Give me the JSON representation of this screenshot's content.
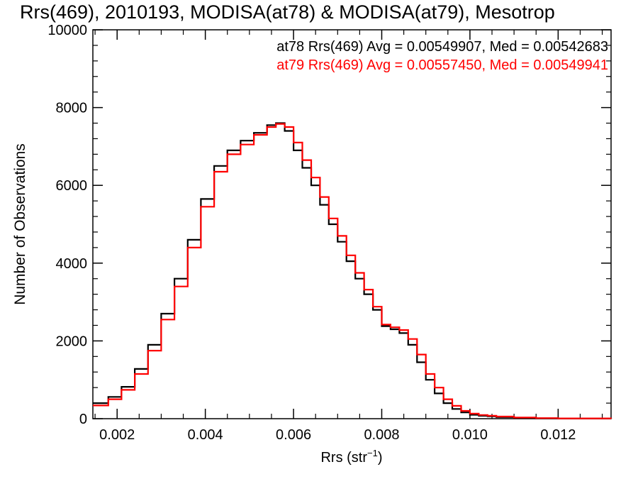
{
  "chart_data": {
    "type": "line",
    "title": "Rrs(469), 2010193, MODISA(at78) & MODISA(at79), Mesotrop",
    "xlabel_main": "Rrs (str",
    "xlabel_sup": "−1",
    "xlabel_close": ")",
    "ylabel": "Number of Observations",
    "xlim": [
      0.00145,
      0.0132
    ],
    "ylim": [
      0,
      10000
    ],
    "x_ticks": [
      0.002,
      0.004,
      0.006,
      0.008,
      0.01,
      0.012
    ],
    "x_tick_labels": [
      "0.002",
      "0.004",
      "0.006",
      "0.008",
      "0.010",
      "0.012"
    ],
    "y_ticks": [
      0,
      2000,
      4000,
      6000,
      8000,
      10000
    ],
    "y_tick_labels": [
      "0",
      "2000",
      "4000",
      "6000",
      "8000",
      "10000"
    ],
    "grid": false,
    "step": true,
    "series": [
      {
        "annotation": "at78 Rrs(469) Avg = 0.00549907, Med = 0.00542683",
        "color": "#000000",
        "x": [
          0.00145,
          0.0018,
          0.0021,
          0.0024,
          0.0027,
          0.003,
          0.0033,
          0.0036,
          0.0039,
          0.0042,
          0.0045,
          0.0048,
          0.0051,
          0.0054,
          0.0056,
          0.0058,
          0.006,
          0.0062,
          0.0064,
          0.0066,
          0.0068,
          0.007,
          0.0072,
          0.0074,
          0.0076,
          0.0078,
          0.008,
          0.0082,
          0.0084,
          0.0086,
          0.0088,
          0.009,
          0.0092,
          0.0094,
          0.0096,
          0.0098,
          0.01,
          0.0102,
          0.0104,
          0.0106,
          0.011,
          0.0115,
          0.012,
          0.0132
        ],
        "y": [
          400,
          560,
          820,
          1280,
          1900,
          2700,
          3600,
          4600,
          5650,
          6500,
          6900,
          7150,
          7350,
          7550,
          7600,
          7400,
          6900,
          6450,
          6000,
          5500,
          5000,
          4550,
          4050,
          3600,
          3200,
          2800,
          2380,
          2300,
          2200,
          1900,
          1450,
          1000,
          650,
          400,
          250,
          160,
          100,
          75,
          60,
          40,
          20,
          10,
          5,
          0
        ]
      },
      {
        "annotation": "at79 Rrs(469) Avg = 0.00557450, Med = 0.00549941",
        "color": "#ff0000",
        "x": [
          0.00145,
          0.0018,
          0.0021,
          0.0024,
          0.0027,
          0.003,
          0.0033,
          0.0036,
          0.0039,
          0.0042,
          0.0045,
          0.0048,
          0.0051,
          0.0054,
          0.0056,
          0.0058,
          0.006,
          0.0062,
          0.0064,
          0.0066,
          0.0068,
          0.007,
          0.0072,
          0.0074,
          0.0076,
          0.0078,
          0.008,
          0.0082,
          0.0084,
          0.0086,
          0.0088,
          0.009,
          0.0092,
          0.0094,
          0.0096,
          0.0098,
          0.01,
          0.0102,
          0.0104,
          0.0106,
          0.011,
          0.0115,
          0.012,
          0.0132
        ],
        "y": [
          340,
          500,
          740,
          1150,
          1750,
          2550,
          3400,
          4400,
          5450,
          6350,
          6800,
          7050,
          7300,
          7500,
          7580,
          7500,
          7100,
          6650,
          6200,
          5700,
          5150,
          4700,
          4200,
          3750,
          3320,
          2880,
          2420,
          2350,
          2280,
          2050,
          1650,
          1150,
          800,
          500,
          330,
          200,
          130,
          95,
          75,
          55,
          30,
          15,
          8,
          0
        ]
      }
    ]
  }
}
